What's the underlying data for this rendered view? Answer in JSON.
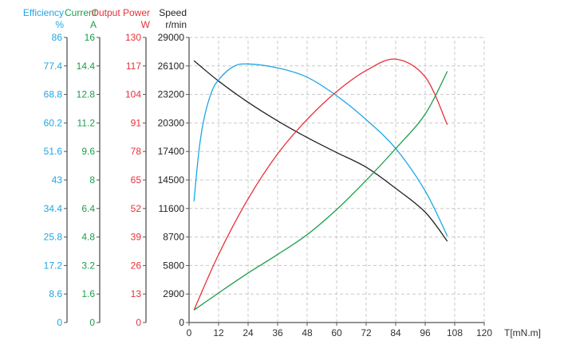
{
  "chart_data": {
    "type": "line",
    "grid": true,
    "xlabel": "T[mN.m]",
    "xlim": [
      0,
      120
    ],
    "xticks": [
      "0",
      "12",
      "24",
      "36",
      "48",
      "60",
      "72",
      "84",
      "96",
      "108",
      "120"
    ],
    "axes": [
      {
        "key": "efficiency",
        "title": "Efficiency",
        "unit": "%",
        "color": "#1ea7e1",
        "ylim": [
          0,
          86
        ],
        "ticks": [
          "0",
          "8.6",
          "17.2",
          "25.8",
          "34.4",
          "43",
          "51.6",
          "60.2",
          "68.8",
          "77.4",
          "86"
        ]
      },
      {
        "key": "current",
        "title": "Current",
        "unit": "A",
        "color": "#1a9e4a",
        "ylim": [
          0,
          16
        ],
        "ticks": [
          "0",
          "1.6",
          "3.2",
          "4.8",
          "6.4",
          "8",
          "9.6",
          "11.2",
          "12.8",
          "14.4",
          "16"
        ]
      },
      {
        "key": "power",
        "title": "Output Power",
        "unit": "W",
        "color": "#e8303a",
        "ylim": [
          0,
          130
        ],
        "ticks": [
          "0",
          "13",
          "26",
          "39",
          "52",
          "65",
          "78",
          "91",
          "104",
          "117",
          "130"
        ]
      },
      {
        "key": "speed",
        "title": "Speed",
        "unit": "r/min",
        "color": "#222222",
        "ylim": [
          0,
          29000
        ],
        "ticks": [
          "0",
          "2900",
          "5800",
          "8700",
          "11600",
          "14500",
          "17400",
          "20300",
          "23200",
          "26100",
          "29000"
        ]
      }
    ],
    "series": [
      {
        "axis": "speed",
        "color": "#222222",
        "x": [
          2,
          12,
          24,
          36,
          48,
          60,
          72,
          84,
          96,
          105
        ],
        "y": [
          26630,
          24560,
          22400,
          20510,
          18820,
          17290,
          15800,
          13650,
          11230,
          8270
        ]
      },
      {
        "axis": "efficiency",
        "color": "#1ea7e1",
        "x": [
          2,
          4,
          6,
          9,
          12,
          18,
          24,
          36,
          48,
          60,
          72,
          84,
          96,
          105
        ],
        "y": [
          36.6,
          51.7,
          61.2,
          69.2,
          73.2,
          77.2,
          78.0,
          76.8,
          74.0,
          68.4,
          61.2,
          52.5,
          39.7,
          26.1
        ]
      },
      {
        "axis": "power",
        "color": "#e8303a",
        "x": [
          2,
          12,
          24,
          36,
          48,
          60,
          72,
          84,
          96,
          105
        ],
        "y": [
          5.7,
          31,
          56.4,
          76.9,
          92.6,
          105.3,
          114.9,
          120.1,
          112,
          90.2
        ]
      },
      {
        "axis": "current",
        "color": "#1a9e4a",
        "x": [
          2,
          12,
          24,
          36,
          48,
          60,
          72,
          84,
          96,
          105
        ],
        "y": [
          0.7,
          1.66,
          2.78,
          3.82,
          4.93,
          6.34,
          7.98,
          9.76,
          11.7,
          14.1
        ]
      }
    ]
  }
}
